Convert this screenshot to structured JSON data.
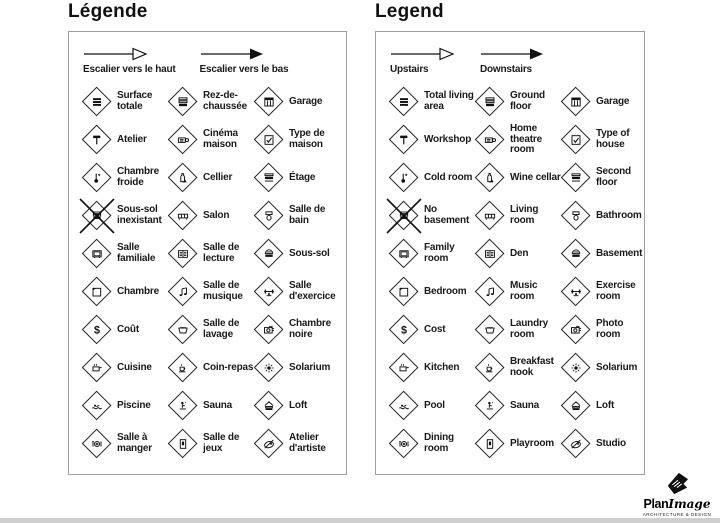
{
  "page": {
    "background": "#ffffff",
    "text_color": "#1a1a1a",
    "panel_border_color": "#9e9e9e",
    "icon_color": "#111111"
  },
  "panels": [
    {
      "title": "Légende",
      "arrows": [
        {
          "style": "outline",
          "label": "Escalier vers le haut"
        },
        {
          "style": "solid",
          "label": "Escalier vers le bas"
        }
      ],
      "items": [
        {
          "icon": "total-living-area",
          "label": "Surface totale"
        },
        {
          "icon": "ground-floor",
          "label": "Rez-de-chaussée"
        },
        {
          "icon": "garage",
          "label": "Garage"
        },
        {
          "icon": "workshop",
          "label": "Atelier"
        },
        {
          "icon": "home-theatre",
          "label": "Cinéma maison"
        },
        {
          "icon": "type-of-house",
          "label": "Type de maison"
        },
        {
          "icon": "cold-room",
          "label": "Chambre froide"
        },
        {
          "icon": "wine-cellar",
          "label": "Cellier"
        },
        {
          "icon": "second-floor",
          "label": "Étage"
        },
        {
          "icon": "no-basement",
          "label": "Sous-sol inexistant",
          "crossed": true
        },
        {
          "icon": "living-room",
          "label": "Salon"
        },
        {
          "icon": "bathroom",
          "label": "Salle de bain"
        },
        {
          "icon": "family-room",
          "label": "Salle familiale"
        },
        {
          "icon": "den",
          "label": "Salle de lecture"
        },
        {
          "icon": "basement",
          "label": "Sous-sol"
        },
        {
          "icon": "bedroom",
          "label": "Chambre"
        },
        {
          "icon": "music-room",
          "label": "Salle de musique"
        },
        {
          "icon": "exercise-room",
          "label": "Salle d'exercice"
        },
        {
          "icon": "cost",
          "label": "Coût"
        },
        {
          "icon": "laundry-room",
          "label": "Salle de lavage"
        },
        {
          "icon": "photo-room",
          "label": "Chambre noire"
        },
        {
          "icon": "kitchen",
          "label": "Cuisine"
        },
        {
          "icon": "breakfast-nook",
          "label": "Coin-repas"
        },
        {
          "icon": "solarium",
          "label": "Solarium"
        },
        {
          "icon": "pool",
          "label": "Piscine"
        },
        {
          "icon": "sauna",
          "label": "Sauna"
        },
        {
          "icon": "loft",
          "label": "Loft"
        },
        {
          "icon": "dining-room",
          "label": "Salle à manger"
        },
        {
          "icon": "playroom",
          "label": "Salle de jeux"
        },
        {
          "icon": "studio",
          "label": "Atelier d'artiste"
        }
      ]
    },
    {
      "title": "Legend",
      "arrows": [
        {
          "style": "outline",
          "label": "Upstairs"
        },
        {
          "style": "solid",
          "label": "Downstairs"
        }
      ],
      "items": [
        {
          "icon": "total-living-area",
          "label": "Total living area"
        },
        {
          "icon": "ground-floor",
          "label": "Ground floor"
        },
        {
          "icon": "garage",
          "label": "Garage"
        },
        {
          "icon": "workshop",
          "label": "Workshop"
        },
        {
          "icon": "home-theatre",
          "label": "Home theatre room"
        },
        {
          "icon": "type-of-house",
          "label": "Type of house"
        },
        {
          "icon": "cold-room",
          "label": "Cold room"
        },
        {
          "icon": "wine-cellar",
          "label": "Wine cellar"
        },
        {
          "icon": "second-floor",
          "label": "Second floor"
        },
        {
          "icon": "no-basement",
          "label": "No basement",
          "crossed": true
        },
        {
          "icon": "living-room",
          "label": "Living room"
        },
        {
          "icon": "bathroom",
          "label": "Bathroom"
        },
        {
          "icon": "family-room",
          "label": "Family room"
        },
        {
          "icon": "den",
          "label": "Den"
        },
        {
          "icon": "basement",
          "label": "Basement"
        },
        {
          "icon": "bedroom",
          "label": "Bedroom"
        },
        {
          "icon": "music-room",
          "label": "Music room"
        },
        {
          "icon": "exercise-room",
          "label": "Exercise room"
        },
        {
          "icon": "cost",
          "label": "Cost"
        },
        {
          "icon": "laundry-room",
          "label": "Laundry room"
        },
        {
          "icon": "photo-room",
          "label": "Photo room"
        },
        {
          "icon": "kitchen",
          "label": "Kitchen"
        },
        {
          "icon": "breakfast-nook",
          "label": "Breakfast nook"
        },
        {
          "icon": "solarium",
          "label": "Solarium"
        },
        {
          "icon": "pool",
          "label": "Pool"
        },
        {
          "icon": "sauna",
          "label": "Sauna"
        },
        {
          "icon": "loft",
          "label": "Loft"
        },
        {
          "icon": "dining-room",
          "label": "Dining room"
        },
        {
          "icon": "playroom",
          "label": "Playroom"
        },
        {
          "icon": "studio",
          "label": "Studio"
        }
      ]
    }
  ],
  "logo": {
    "name_plan": "Plan",
    "name_image": "Image",
    "tagline": "ARCHITECTURE & DESIGN"
  }
}
